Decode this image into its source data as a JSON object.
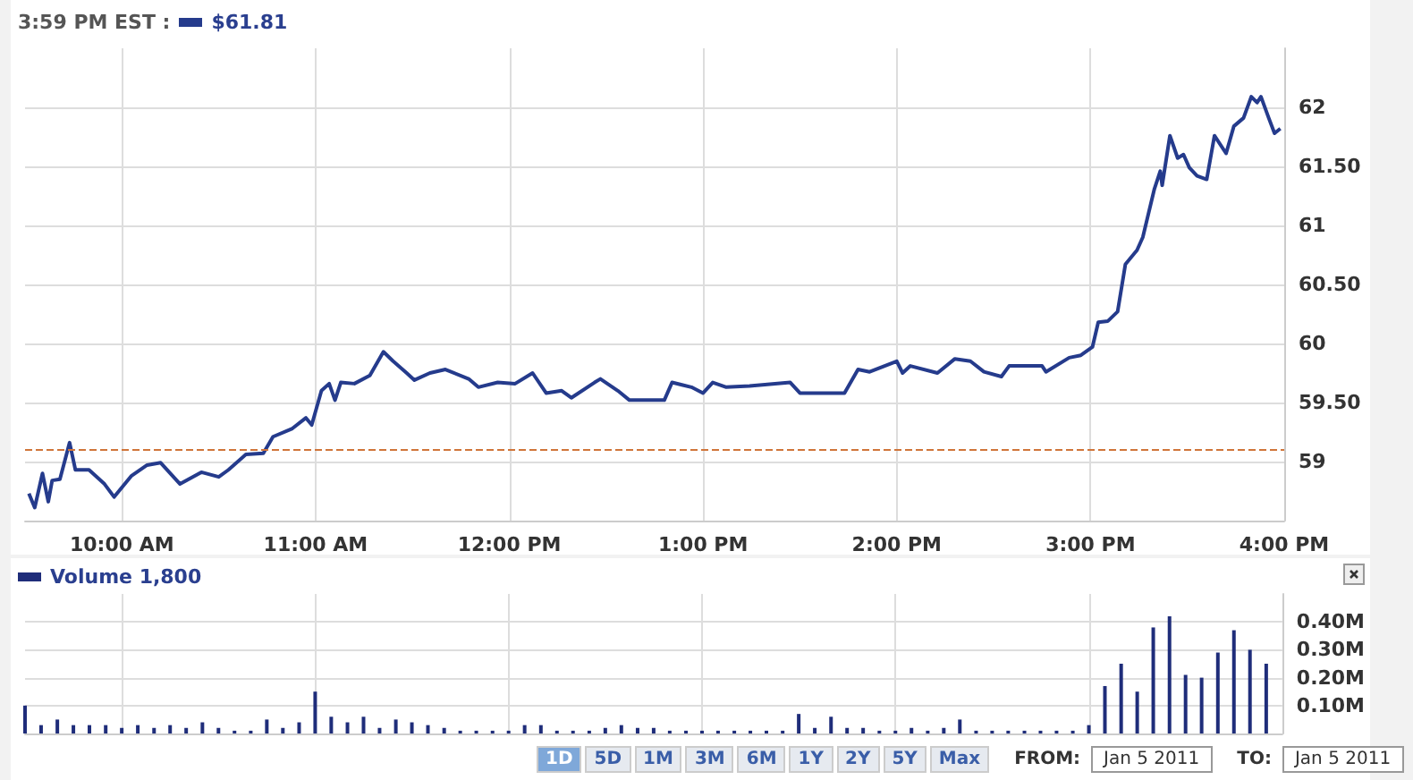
{
  "chart_data": [
    {
      "type": "line",
      "title": "3:59 PM EST :",
      "subtitle": "$61.81",
      "xlim": [
        9.5,
        16
      ],
      "xticks": [
        {
          "value": 10,
          "label": "10:00 AM"
        },
        {
          "value": 11,
          "label": "11:00 AM"
        },
        {
          "value": 12,
          "label": "12:00 PM"
        },
        {
          "value": 13,
          "label": "1:00 PM"
        },
        {
          "value": 14,
          "label": "2:00 PM"
        },
        {
          "value": 15,
          "label": "3:00 PM"
        },
        {
          "value": 16,
          "label": "4:00 PM"
        }
      ],
      "ylim": [
        58.5,
        62.5
      ],
      "yticks": [
        {
          "value": 59,
          "label": "59"
        },
        {
          "value": 59.5,
          "label": "59.50"
        },
        {
          "value": 60,
          "label": "60"
        },
        {
          "value": 60.5,
          "label": "60.50"
        },
        {
          "value": 61,
          "label": "61"
        },
        {
          "value": 61.5,
          "label": "61.50"
        },
        {
          "value": 62,
          "label": "62"
        }
      ],
      "grid": true,
      "marker": "none",
      "line_style": "solid",
      "ref_lines": [
        {
          "axis": "y",
          "value": 59.1,
          "label": null,
          "color": "#d0753a",
          "line_style": "dashed"
        }
      ],
      "series": [
        {
          "color": "#253b8c",
          "x": [
            9.52,
            9.55,
            9.59,
            9.62,
            9.64,
            9.68,
            9.73,
            9.76,
            9.83,
            9.91,
            9.96,
            10.05,
            10.13,
            10.2,
            10.3,
            10.41,
            10.5,
            10.55,
            10.64,
            10.73,
            10.78,
            10.88,
            10.95,
            10.98,
            11.03,
            11.07,
            11.1,
            11.13,
            11.2,
            11.28,
            11.35,
            11.4,
            11.47,
            11.51,
            11.59,
            11.67,
            11.79,
            11.84,
            11.94,
            12.03,
            12.12,
            12.19,
            12.27,
            12.32,
            12.44,
            12.47,
            12.56,
            12.62,
            12.8,
            12.84,
            12.94,
            13.0,
            13.05,
            13.12,
            13.24,
            13.45,
            13.5,
            13.56,
            13.73,
            13.8,
            13.86,
            14.0,
            14.03,
            14.07,
            14.21,
            14.3,
            14.38,
            14.45,
            14.54,
            14.58,
            14.75,
            14.77,
            14.89,
            14.95,
            15.01,
            15.04,
            15.09,
            15.14,
            15.18,
            15.24,
            15.27,
            15.33,
            15.36,
            15.37,
            15.41,
            15.45,
            15.48,
            15.51,
            15.55,
            15.6,
            15.64,
            15.7,
            15.74,
            15.79,
            15.83,
            15.86,
            15.88,
            15.92,
            15.95,
            15.98
          ],
          "values": [
            58.73,
            58.61,
            58.9,
            58.66,
            58.84,
            58.85,
            59.16,
            58.93,
            58.93,
            58.81,
            58.7,
            58.88,
            58.97,
            58.99,
            58.81,
            58.91,
            58.87,
            58.93,
            59.06,
            59.07,
            59.21,
            59.28,
            59.37,
            59.31,
            59.6,
            59.66,
            59.52,
            59.67,
            59.66,
            59.73,
            59.93,
            59.85,
            59.75,
            59.69,
            59.75,
            59.78,
            59.7,
            59.63,
            59.67,
            59.66,
            59.75,
            59.58,
            59.6,
            59.54,
            59.67,
            59.7,
            59.6,
            59.52,
            59.52,
            59.67,
            59.63,
            59.58,
            59.67,
            59.63,
            59.64,
            59.67,
            59.58,
            59.58,
            59.58,
            59.78,
            59.76,
            59.85,
            59.75,
            59.81,
            59.75,
            59.87,
            59.85,
            59.76,
            59.72,
            59.81,
            59.81,
            59.76,
            59.88,
            59.9,
            59.97,
            60.18,
            60.19,
            60.27,
            60.67,
            60.79,
            60.9,
            61.31,
            61.46,
            61.34,
            61.76,
            61.57,
            61.6,
            61.49,
            61.42,
            61.39,
            61.76,
            61.61,
            61.84,
            61.91,
            62.09,
            62.04,
            62.09,
            61.91,
            61.78,
            61.82
          ]
        }
      ]
    },
    {
      "type": "bar",
      "title": "Volume 1,800",
      "xlim": [
        9.5,
        16
      ],
      "xticks": [
        {
          "value": 10,
          "label": null
        },
        {
          "value": 11,
          "label": null
        },
        {
          "value": 12,
          "label": null
        },
        {
          "value": 13,
          "label": null
        },
        {
          "value": 14,
          "label": null
        },
        {
          "value": 15,
          "label": null
        },
        {
          "value": 16,
          "label": null
        }
      ],
      "ylim": [
        0,
        0.5
      ],
      "yticks": [
        {
          "value": 0.1,
          "label": "0.10M"
        },
        {
          "value": 0.2,
          "label": "0.20M"
        },
        {
          "value": 0.3,
          "label": "0.30M"
        },
        {
          "value": 0.4,
          "label": "0.40M"
        }
      ],
      "grid": true,
      "tick_labels": "y",
      "annotations": [
        "1D",
        "5D",
        "1M",
        "3M",
        "6M",
        "1Y",
        "2Y",
        "5Y",
        "Max",
        "FROM:",
        "Jan 5 2011",
        "TO:",
        "Jan 5 2011"
      ],
      "series": [
        {
          "color": "#1f2d7a",
          "x": [
            9.5,
            9.583,
            9.667,
            9.75,
            9.833,
            9.917,
            10,
            10.083,
            10.167,
            10.25,
            10.333,
            10.417,
            10.5,
            10.583,
            10.667,
            10.75,
            10.833,
            10.917,
            11,
            11.083,
            11.167,
            11.25,
            11.333,
            11.417,
            11.5,
            11.583,
            11.667,
            11.75,
            11.833,
            11.917,
            12,
            12.083,
            12.167,
            12.25,
            12.333,
            12.417,
            12.5,
            12.583,
            12.667,
            12.75,
            12.833,
            12.917,
            13,
            13.083,
            13.167,
            13.25,
            13.333,
            13.417,
            13.5,
            13.583,
            13.667,
            13.75,
            13.833,
            13.917,
            14,
            14.083,
            14.167,
            14.25,
            14.333,
            14.417,
            14.5,
            14.583,
            14.667,
            14.75,
            14.833,
            14.917,
            15,
            15.083,
            15.167,
            15.25,
            15.333,
            15.417,
            15.5,
            15.583,
            15.667,
            15.75,
            15.833,
            15.917
          ],
          "values": [
            0.1,
            0.03,
            0.05,
            0.03,
            0.03,
            0.03,
            0.02,
            0.03,
            0.02,
            0.03,
            0.02,
            0.04,
            0.02,
            0.01,
            0.01,
            0.05,
            0.02,
            0.04,
            0.15,
            0.06,
            0.04,
            0.06,
            0.02,
            0.05,
            0.04,
            0.03,
            0.02,
            0.01,
            0.01,
            0.01,
            0.01,
            0.03,
            0.03,
            0.01,
            0.01,
            0.01,
            0.02,
            0.03,
            0.02,
            0.02,
            0.01,
            0.01,
            0.01,
            0.01,
            0.01,
            0.01,
            0.01,
            0.01,
            0.07,
            0.02,
            0.06,
            0.02,
            0.02,
            0.01,
            0.01,
            0.02,
            0.01,
            0.02,
            0.05,
            0.01,
            0.01,
            0.01,
            0.01,
            0.01,
            0.01,
            0.01,
            0.03,
            0.17,
            0.25,
            0.15,
            0.38,
            0.42,
            0.21,
            0.2,
            0.29,
            0.37,
            0.3,
            0.25
          ]
        }
      ]
    }
  ]
}
